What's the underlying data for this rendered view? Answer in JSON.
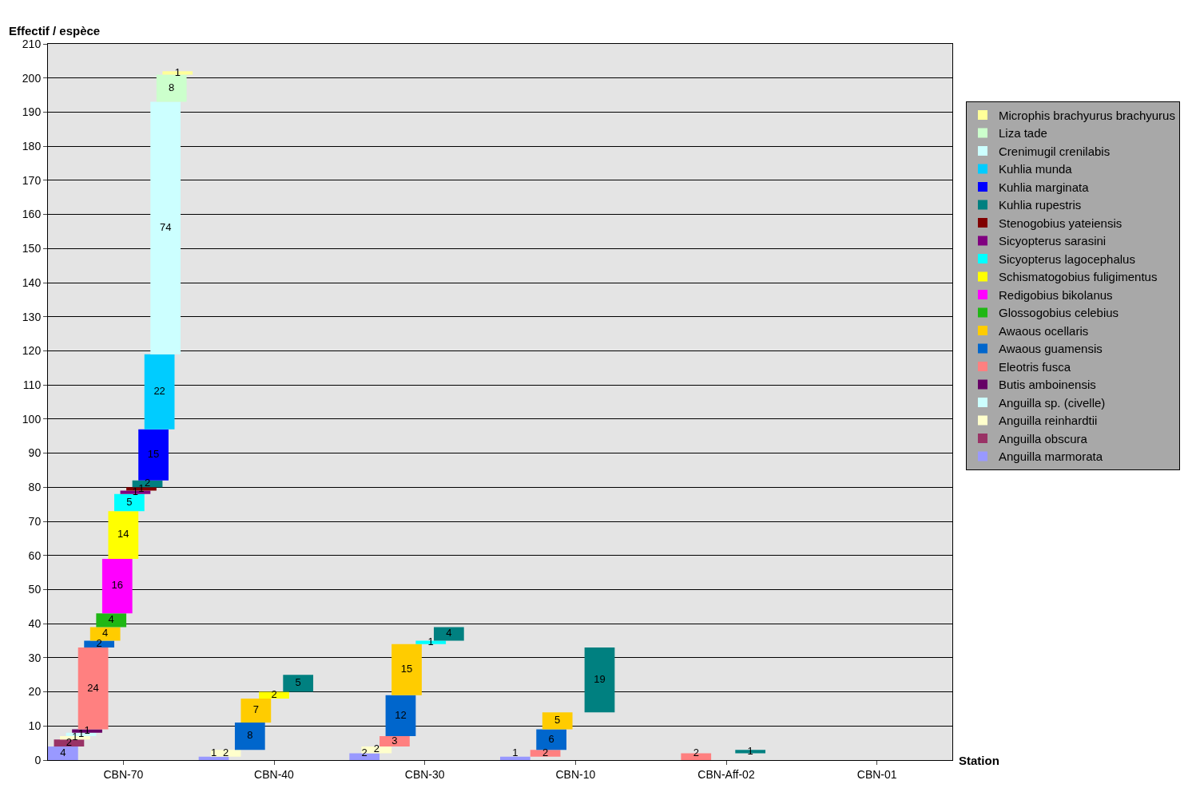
{
  "chart_data": {
    "type": "bar",
    "stacked": true,
    "ylabel": "Effectif / espèce",
    "xlabel": "Station",
    "categories": [
      "CBN-70",
      "CBN-40",
      "CBN-30",
      "CBN-10",
      "CBN-Aff-02",
      "CBN-01"
    ],
    "ylim": [
      0,
      210
    ],
    "yticks": [
      0,
      10,
      20,
      30,
      40,
      50,
      60,
      70,
      80,
      90,
      100,
      110,
      120,
      130,
      140,
      150,
      160,
      170,
      180,
      190,
      200,
      210
    ],
    "grid": "y",
    "legend": "right",
    "data_labels": true,
    "series": [
      {
        "name": "Anguilla marmorata",
        "color": "#9999ff",
        "values": [
          4,
          1,
          2,
          1,
          null,
          null
        ]
      },
      {
        "name": "Anguilla obscura",
        "color": "#993366",
        "values": [
          2,
          null,
          null,
          null,
          null,
          null
        ]
      },
      {
        "name": "Anguilla reinhardtii",
        "color": "#ffffcc",
        "values": [
          1,
          2,
          2,
          null,
          null,
          null
        ]
      },
      {
        "name": "Anguilla sp. (civelle)",
        "color": "#ccffff",
        "values": [
          1,
          null,
          null,
          null,
          null,
          null
        ]
      },
      {
        "name": "Butis amboinensis",
        "color": "#660066",
        "values": [
          1,
          null,
          null,
          null,
          null,
          null
        ]
      },
      {
        "name": "Eleotris fusca",
        "color": "#ff8080",
        "values": [
          24,
          null,
          3,
          2,
          2,
          null
        ]
      },
      {
        "name": "Awaous guamensis",
        "color": "#0066cc",
        "values": [
          2,
          8,
          12,
          6,
          null,
          null
        ]
      },
      {
        "name": "Awaous ocellaris",
        "color": "#ffcc00",
        "values": [
          4,
          7,
          15,
          5,
          null,
          null
        ]
      },
      {
        "name": "Glossogobius celebius",
        "color": "#1fb714",
        "values": [
          4,
          null,
          null,
          null,
          null,
          null
        ]
      },
      {
        "name": "Redigobius bikolanus",
        "color": "#ff00ff",
        "values": [
          16,
          null,
          null,
          null,
          null,
          null
        ]
      },
      {
        "name": "Schismatogobius fuligimentus",
        "color": "#ffff00",
        "values": [
          14,
          2,
          null,
          null,
          null,
          null
        ]
      },
      {
        "name": "Sicyopterus lagocephalus",
        "color": "#00ffff",
        "values": [
          5,
          null,
          1,
          null,
          null,
          null
        ]
      },
      {
        "name": "Sicyopterus sarasini",
        "color": "#800080",
        "values": [
          1,
          null,
          null,
          null,
          null,
          null
        ]
      },
      {
        "name": "Stenogobius yateiensis",
        "color": "#800000",
        "values": [
          1,
          null,
          null,
          null,
          null,
          null
        ]
      },
      {
        "name": "Kuhlia rupestris",
        "color": "#008080",
        "values": [
          2,
          5,
          4,
          19,
          1,
          null
        ]
      },
      {
        "name": "Kuhlia marginata",
        "color": "#0000ff",
        "values": [
          15,
          null,
          null,
          null,
          null,
          null
        ]
      },
      {
        "name": "Kuhlia munda",
        "color": "#00ccff",
        "values": [
          22,
          null,
          null,
          null,
          null,
          null
        ]
      },
      {
        "name": "Crenimugil crenilabis",
        "color": "#ccffff",
        "values": [
          74,
          null,
          null,
          null,
          null,
          null
        ]
      },
      {
        "name": "Liza tade",
        "color": "#ccffcc",
        "values": [
          8,
          null,
          null,
          null,
          null,
          null
        ]
      },
      {
        "name": "Microphis brachyurus brachyurus",
        "color": "#ffff99",
        "values": [
          1,
          null,
          null,
          null,
          null,
          null
        ]
      }
    ]
  }
}
